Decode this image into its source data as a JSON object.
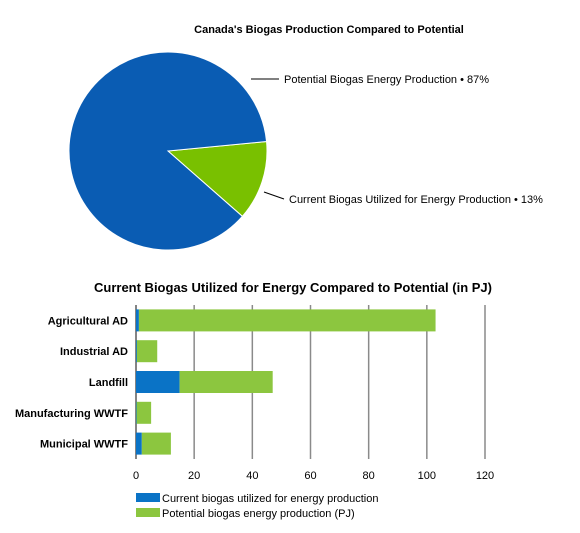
{
  "chart_data": [
    {
      "type": "pie",
      "title": "Canada's Biogas Production Compared to Potential",
      "slices": [
        {
          "label": "Potential Biogas Energy Production • 87%",
          "value": 87,
          "color": "#0a5cb3"
        },
        {
          "label": "Current Biogas Utilized for Energy Production • 13%",
          "value": 13,
          "color": "#79c000"
        }
      ]
    },
    {
      "type": "bar",
      "orientation": "horizontal",
      "stacked": true,
      "title": "Current Biogas Utilized for Energy Compared to Potential (in PJ)",
      "categories": [
        "Agricultural AD",
        "Industrial AD",
        "Landfill",
        "Manufacturing WWTF",
        "Municipal WWTF"
      ],
      "series": [
        {
          "name": "Current biogas utilized for energy production",
          "color": "#0a73c6",
          "values": [
            1,
            0.3,
            15,
            0.2,
            2
          ]
        },
        {
          "name": "Potential biogas energy production (PJ)",
          "color": "#8cc63f",
          "values": [
            102,
            7,
            32,
            5,
            10
          ]
        }
      ],
      "xlim": [
        0,
        120
      ],
      "xticks": [
        "0",
        "20",
        "40",
        "60",
        "80",
        "100",
        "120"
      ],
      "grid": true,
      "legend": "bottom"
    }
  ]
}
